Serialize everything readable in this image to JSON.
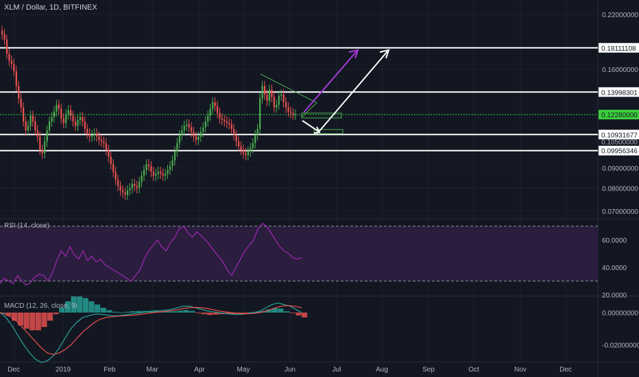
{
  "colors": {
    "background": "#131722",
    "grid": "#1e2230",
    "text": "#b2b5be",
    "up": "#26a69a",
    "down": "#ef5350",
    "up_candle": "#4caf50",
    "down_candle": "#ef5350",
    "level": "#ffffff",
    "current": "#3ccf3c",
    "rsi": "#9c27b0",
    "rsi_band": "#2a1d3d",
    "macd": "#26a69a",
    "signal": "#ef5350",
    "arrow_purple": "#a43bd6",
    "arrow_white": "#ffffff",
    "triangle": "#4caf50"
  },
  "header": {
    "symbol_title": "XLM / Dollar, 1D, BITFINEX"
  },
  "rsi_panel": {
    "label": "RSI (14, close)"
  },
  "macd_panel": {
    "label": "MACD (12, 26, close, 9)"
  },
  "price_axis": {
    "ticks": [
      "0.22000000",
      "0.16000000",
      "0.09000000",
      "0.08000000",
      "0.07000000"
    ],
    "levels": [
      {
        "label": "0.18111108",
        "value": 0.18111108
      },
      {
        "label": "0.13998301",
        "value": 0.13998301
      },
      {
        "label": "0.10931677",
        "value": 0.10931677
      },
      {
        "label": "0.10500000",
        "value": 0.105
      },
      {
        "label": "0.09956346",
        "value": 0.09956346
      }
    ],
    "current": {
      "label": "0.12280000",
      "value": 0.1228
    }
  },
  "rsi_axis": {
    "ticks": [
      "60.0000",
      "40.0000",
      "20.0000"
    ]
  },
  "macd_axis": {
    "ticks": [
      "0.00000000",
      "-0.02000000"
    ]
  },
  "time_axis": {
    "labels": [
      "Dec",
      "2019",
      "Feb",
      "Mar",
      "Apr",
      "May",
      "Jun",
      "Jul",
      "Aug",
      "Sep",
      "Oct",
      "Nov",
      "Dec"
    ]
  },
  "chart_data": {
    "type": "candlestick",
    "title": "XLM / Dollar, 1D, BITFINEX",
    "price_scale": "log",
    "price_range": [
      0.07,
      0.22
    ],
    "horizontal_levels": [
      0.18111108,
      0.13998301,
      0.10931677,
      0.09956346
    ],
    "last_price": 0.1228,
    "closes": [
      0.196,
      0.19,
      0.175,
      0.168,
      0.165,
      0.158,
      0.145,
      0.135,
      0.128,
      0.118,
      0.112,
      0.115,
      0.122,
      0.118,
      0.112,
      0.108,
      0.1,
      0.098,
      0.105,
      0.112,
      0.118,
      0.121,
      0.125,
      0.13,
      0.127,
      0.12,
      0.117,
      0.123,
      0.126,
      0.122,
      0.118,
      0.115,
      0.119,
      0.121,
      0.118,
      0.113,
      0.11,
      0.108,
      0.109,
      0.11,
      0.108,
      0.106,
      0.105,
      0.104,
      0.1,
      0.096,
      0.092,
      0.088,
      0.084,
      0.081,
      0.079,
      0.078,
      0.077,
      0.079,
      0.08,
      0.082,
      0.081,
      0.08,
      0.083,
      0.086,
      0.089,
      0.092,
      0.091,
      0.088,
      0.086,
      0.087,
      0.088,
      0.087,
      0.086,
      0.087,
      0.089,
      0.091,
      0.094,
      0.099,
      0.104,
      0.109,
      0.112,
      0.115,
      0.116,
      0.114,
      0.111,
      0.108,
      0.106,
      0.108,
      0.111,
      0.114,
      0.118,
      0.122,
      0.127,
      0.132,
      0.129,
      0.124,
      0.12,
      0.119,
      0.118,
      0.117,
      0.116,
      0.113,
      0.109,
      0.105,
      0.102,
      0.1,
      0.098,
      0.097,
      0.099,
      0.101,
      0.104,
      0.109,
      0.113,
      0.135,
      0.145,
      0.138,
      0.133,
      0.142,
      0.136,
      0.128,
      0.13,
      0.137,
      0.138,
      0.132,
      0.128,
      0.125,
      0.124,
      0.1228,
      0.1228
    ],
    "rsi": [
      28,
      32,
      30,
      28,
      34,
      30,
      27,
      29,
      33,
      35,
      34,
      30,
      36,
      45,
      52,
      48,
      55,
      49,
      46,
      52,
      45,
      48,
      44,
      46,
      42,
      40,
      38,
      36,
      34,
      32,
      30,
      34,
      38,
      46,
      52,
      56,
      60,
      55,
      52,
      58,
      62,
      68,
      70,
      65,
      62,
      66,
      63,
      60,
      56,
      52,
      48,
      44,
      38,
      34,
      40,
      46,
      52,
      56,
      60,
      68,
      72,
      70,
      65,
      60,
      55,
      52,
      50,
      47,
      46,
      47
    ],
    "macd": [
      0.0,
      -0.003,
      -0.008,
      -0.014,
      -0.02,
      -0.025,
      -0.029,
      -0.031,
      -0.03,
      -0.027,
      -0.022,
      -0.016,
      -0.01,
      -0.006,
      -0.003,
      -0.002,
      -0.001,
      -0.001,
      -0.0015,
      -0.002,
      -0.002,
      -0.0015,
      -0.001,
      -0.0005,
      0.0,
      0.0005,
      0.001,
      0.0012,
      0.0015,
      0.002,
      0.003,
      0.004,
      0.004,
      0.003,
      0.002,
      0.001,
      0.0005,
      0.0,
      -0.0005,
      -0.001,
      -0.0012,
      -0.001,
      -0.0005,
      0.0,
      0.001,
      0.003,
      0.005,
      0.006,
      0.005,
      0.004,
      0.002,
      0.0
    ],
    "signal": [
      0.0,
      -0.001,
      -0.003,
      -0.006,
      -0.01,
      -0.014,
      -0.018,
      -0.022,
      -0.025,
      -0.026,
      -0.025,
      -0.023,
      -0.02,
      -0.016,
      -0.012,
      -0.009,
      -0.006,
      -0.004,
      -0.003,
      -0.0025,
      -0.0022,
      -0.002,
      -0.0018,
      -0.0015,
      -0.001,
      -0.0005,
      0.0,
      0.0004,
      0.0008,
      0.0012,
      0.0018,
      0.0025,
      0.003,
      0.0032,
      0.003,
      0.0025,
      0.0018,
      0.001,
      0.0005,
      0.0,
      -0.0004,
      -0.0007,
      -0.0007,
      -0.0005,
      0.0,
      0.001,
      0.0022,
      0.0035,
      0.0042,
      0.0043,
      0.0038,
      0.003
    ]
  }
}
